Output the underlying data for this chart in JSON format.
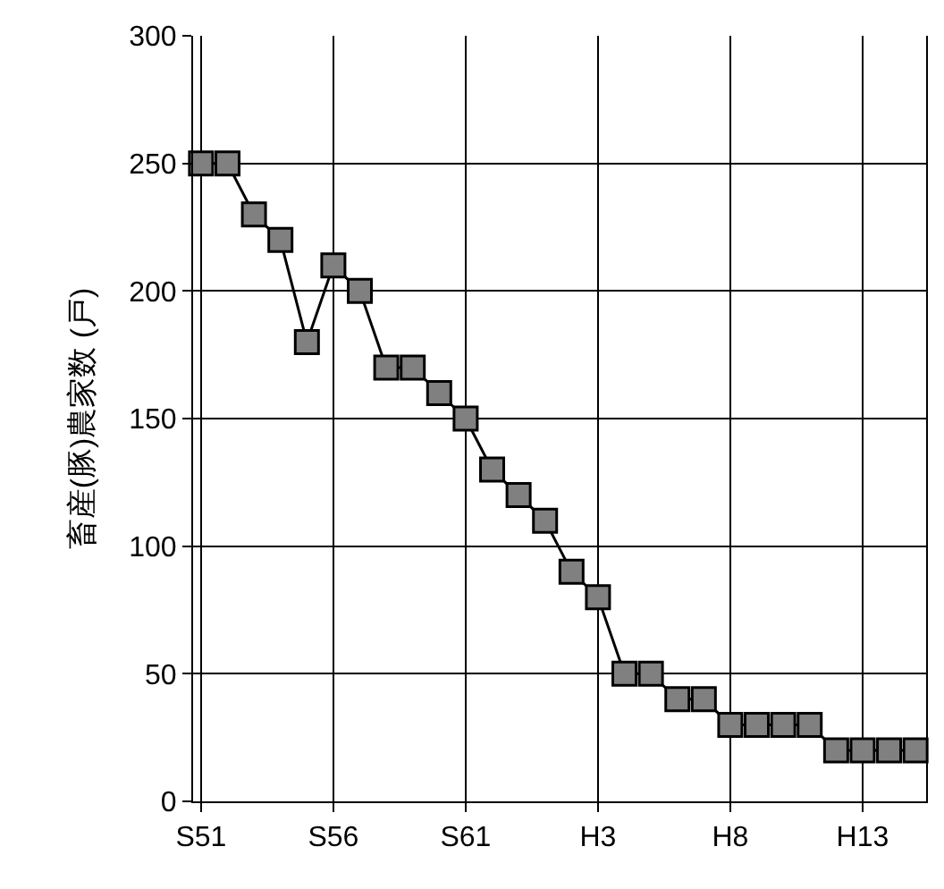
{
  "chart_data": {
    "type": "line",
    "ylabel": "畜産(豚)農家数 (戸)",
    "categories": [
      "S51",
      null,
      null,
      null,
      null,
      "S56",
      null,
      null,
      null,
      null,
      "S61",
      null,
      null,
      null,
      null,
      "H3",
      null,
      null,
      null,
      null,
      "H8",
      null,
      null,
      null,
      null,
      "H13",
      null,
      null
    ],
    "series": [
      {
        "color": "#808080",
        "values": [
          250,
          250,
          230,
          220,
          180,
          210,
          200,
          170,
          170,
          160,
          150,
          130,
          120,
          110,
          90,
          80,
          50,
          50,
          40,
          40,
          30,
          30,
          30,
          30,
          20,
          20,
          20,
          20
        ]
      }
    ],
    "ylim": [
      0,
      300
    ],
    "yticks": [
      0,
      50,
      100,
      150,
      200,
      250,
      300
    ],
    "grid": true,
    "marker": "square",
    "line_style": "solid"
  }
}
